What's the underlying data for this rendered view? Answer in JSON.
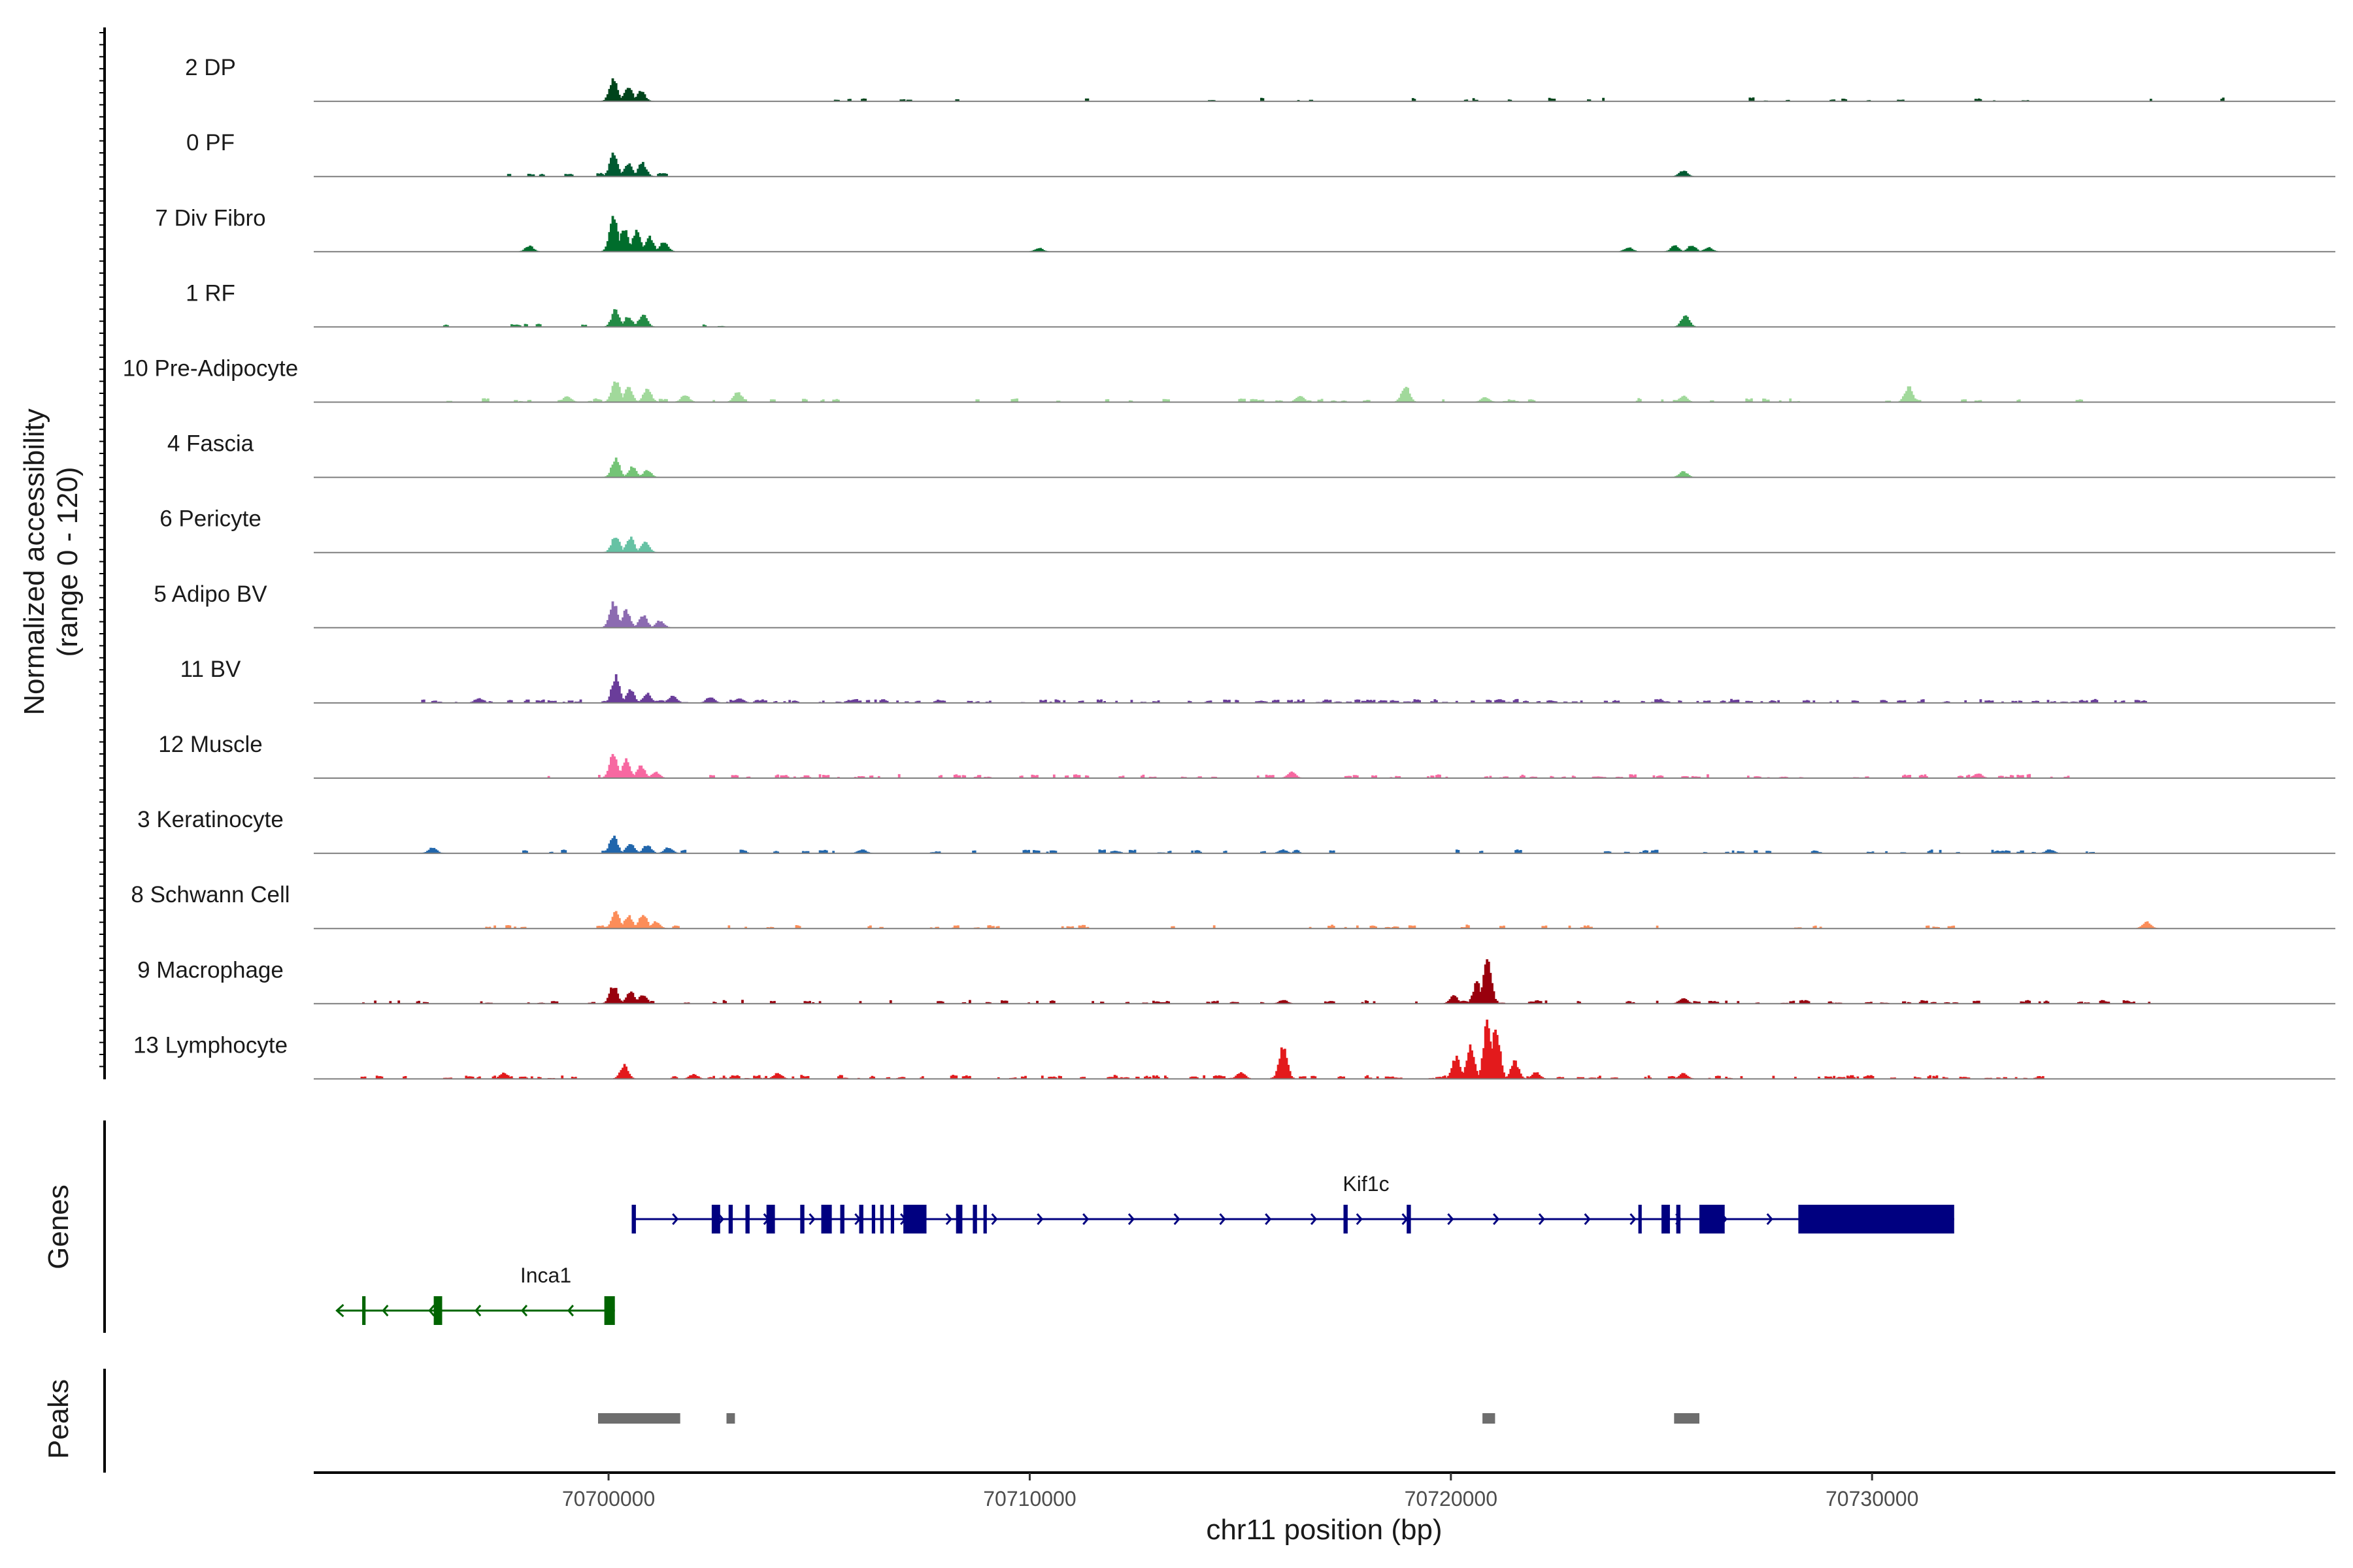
{
  "chart_data": {
    "type": "area",
    "y_axis_title_lines": [
      "Normalized accessibility",
      "(range 0 - 120)"
    ],
    "y_range": [
      0,
      120
    ],
    "xlabel": "chr11 position (bp)",
    "xlim": [
      70693000,
      70741000
    ],
    "x_ticks": [
      70700000,
      70710000,
      70720000,
      70730000
    ],
    "x_tick_labels": [
      "70700000",
      "70710000",
      "70720000",
      "70730000"
    ],
    "tracks": [
      {
        "name": "2 DP",
        "color": "#00441b",
        "peaks": [
          [
            70700100,
            42
          ],
          [
            70700450,
            26
          ],
          [
            70700750,
            18
          ]
        ],
        "noise": [
          [
            70703000,
            70739000,
            0.03
          ]
        ]
      },
      {
        "name": "0 PF",
        "color": "#005a32",
        "peaks": [
          [
            70700100,
            40
          ],
          [
            70700450,
            22
          ],
          [
            70700780,
            24
          ],
          [
            70725500,
            10
          ]
        ],
        "noise": [
          [
            70696000,
            70704000,
            0.05
          ]
        ]
      },
      {
        "name": "7 Div Fibro",
        "color": "#006d2c",
        "peaks": [
          [
            70700100,
            64
          ],
          [
            70700350,
            42
          ],
          [
            70700650,
            38
          ],
          [
            70700950,
            26
          ],
          [
            70701300,
            18
          ],
          [
            70698100,
            10
          ],
          [
            70710200,
            6
          ],
          [
            70724200,
            7
          ],
          [
            70725300,
            10
          ],
          [
            70725700,
            11
          ],
          [
            70726100,
            7
          ]
        ],
        "noise": []
      },
      {
        "name": "1 RF",
        "color": "#238b45",
        "peaks": [
          [
            70700150,
            30
          ],
          [
            70700450,
            18
          ],
          [
            70700800,
            22
          ],
          [
            70725550,
            20
          ]
        ],
        "noise": [
          [
            70696000,
            70704000,
            0.05
          ]
        ]
      },
      {
        "name": "10 Pre-Adipocyte",
        "color": "#a1d99b",
        "peaks": [
          [
            70700150,
            40
          ],
          [
            70700450,
            26
          ],
          [
            70700900,
            22
          ],
          [
            70703050,
            18
          ],
          [
            70718900,
            28
          ],
          [
            70716400,
            10
          ],
          [
            70725500,
            10
          ],
          [
            70730850,
            26
          ],
          [
            70701800,
            12
          ],
          [
            70699000,
            10
          ],
          [
            70720800,
            8
          ]
        ],
        "noise": [
          [
            70695000,
            70735000,
            0.07
          ]
        ]
      },
      {
        "name": "4 Fascia",
        "color": "#74c476",
        "peaks": [
          [
            70700150,
            34
          ],
          [
            70700550,
            18
          ],
          [
            70700900,
            12
          ],
          [
            70725500,
            10
          ]
        ],
        "noise": []
      },
      {
        "name": "6 Pericyte",
        "color": "#66c2a4",
        "peaks": [
          [
            70700150,
            30
          ],
          [
            70700500,
            26
          ],
          [
            70700850,
            18
          ]
        ],
        "noise": []
      },
      {
        "name": "5 Adipo BV",
        "color": "#8c6bb1",
        "peaks": [
          [
            70700100,
            44
          ],
          [
            70700400,
            30
          ],
          [
            70700800,
            22
          ],
          [
            70701200,
            12
          ]
        ],
        "noise": []
      },
      {
        "name": "11 BV",
        "color": "#6a3d9a",
        "peaks": [
          [
            70700150,
            46
          ],
          [
            70700500,
            22
          ],
          [
            70700900,
            16
          ],
          [
            70701500,
            12
          ],
          [
            70702400,
            10
          ],
          [
            70703100,
            8
          ],
          [
            70696900,
            8
          ]
        ],
        "noise": [
          [
            70695500,
            70736500,
            0.16
          ]
        ]
      },
      {
        "name": "12 Muscle",
        "color": "#f768a1",
        "peaks": [
          [
            70700100,
            44
          ],
          [
            70700400,
            32
          ],
          [
            70700750,
            22
          ],
          [
            70701100,
            10
          ],
          [
            70716200,
            10
          ],
          [
            70732500,
            8
          ]
        ],
        "noise": [
          [
            70698000,
            70735000,
            0.12
          ]
        ]
      },
      {
        "name": "3 Keratinocyte",
        "color": "#2166ac",
        "peaks": [
          [
            70700100,
            30
          ],
          [
            70700500,
            18
          ],
          [
            70700900,
            14
          ],
          [
            70701400,
            10
          ],
          [
            70695800,
            10
          ],
          [
            70706000,
            6
          ],
          [
            70716000,
            6
          ],
          [
            70734200,
            6
          ]
        ],
        "noise": [
          [
            70695000,
            70736000,
            0.06
          ]
        ]
      },
      {
        "name": "8 Schwann Cell",
        "color": "#fc8d59",
        "peaks": [
          [
            70700150,
            28
          ],
          [
            70700450,
            22
          ],
          [
            70700800,
            26
          ],
          [
            70701100,
            12
          ],
          [
            70736500,
            12
          ]
        ],
        "noise": [
          [
            70697000,
            70734000,
            0.05
          ]
        ]
      },
      {
        "name": "9 Macrophage",
        "color": "#99000d",
        "peaks": [
          [
            70700100,
            32
          ],
          [
            70700500,
            22
          ],
          [
            70700800,
            16
          ],
          [
            70720050,
            14
          ],
          [
            70720600,
            36
          ],
          [
            70720850,
            78
          ],
          [
            70725500,
            10
          ],
          [
            70716000,
            6
          ]
        ],
        "noise": [
          [
            70694000,
            70737000,
            0.1
          ]
        ]
      },
      {
        "name": "13 Lymphocyte",
        "color": "#e31a1c",
        "peaks": [
          [
            70700350,
            24
          ],
          [
            70716000,
            60
          ],
          [
            70720100,
            38
          ],
          [
            70720450,
            56
          ],
          [
            70720850,
            100
          ],
          [
            70721050,
            92
          ],
          [
            70721500,
            30
          ],
          [
            70722000,
            12
          ],
          [
            70715000,
            12
          ],
          [
            70704000,
            10
          ],
          [
            70697500,
            10
          ],
          [
            70702000,
            8
          ],
          [
            70725500,
            10
          ]
        ],
        "noise": [
          [
            70694000,
            70734000,
            0.16
          ]
        ]
      }
    ],
    "genes": [
      {
        "name": "Kif1c",
        "strand": "+",
        "color": "#000080",
        "start": 70700550,
        "end": 70731950,
        "exons": [
          [
            70700550,
            70700650
          ],
          [
            70702450,
            70702650
          ],
          [
            70702850,
            70702950
          ],
          [
            70703250,
            70703350
          ],
          [
            70703750,
            70703950
          ],
          [
            70704550,
            70704650
          ],
          [
            70705050,
            70705300
          ],
          [
            70705500,
            70705600
          ],
          [
            70705950,
            70706050
          ],
          [
            70706250,
            70706330
          ],
          [
            70706450,
            70706530
          ],
          [
            70706700,
            70706780
          ],
          [
            70707000,
            70707550
          ],
          [
            70708250,
            70708400
          ],
          [
            70708650,
            70708750
          ],
          [
            70708900,
            70708980
          ],
          [
            70717450,
            70717550
          ],
          [
            70718950,
            70719050
          ],
          [
            70724450,
            70724530
          ],
          [
            70725000,
            70725200
          ],
          [
            70725350,
            70725450
          ],
          [
            70725900,
            70726500
          ],
          [
            70728250,
            70731950
          ]
        ]
      },
      {
        "name": "Inca1",
        "strand": "-",
        "color": "#006400",
        "start": 70693550,
        "end": 70700150,
        "exons": [
          [
            70694150,
            70694230
          ],
          [
            70695850,
            70696050
          ],
          [
            70699900,
            70700150
          ]
        ]
      }
    ],
    "peaks_track": [
      [
        70699750,
        70701700
      ],
      [
        70702800,
        70703000
      ],
      [
        70720750,
        70721050
      ],
      [
        70725300,
        70725900
      ]
    ],
    "panel_titles": [
      "Genes",
      "Peaks"
    ]
  }
}
